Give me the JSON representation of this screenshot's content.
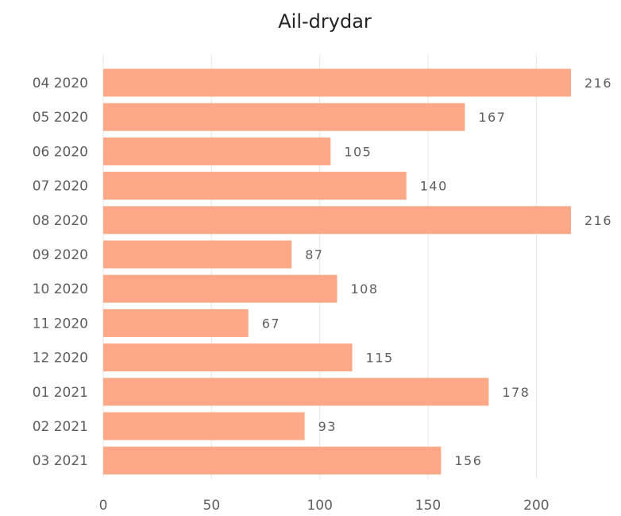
{
  "chart_data": {
    "type": "bar",
    "orientation": "horizontal",
    "title": "Ail-drydar",
    "categories": [
      "04 2020",
      "05 2020",
      "06 2020",
      "07 2020",
      "08 2020",
      "09 2020",
      "10 2020",
      "11 2020",
      "12 2020",
      "01 2021",
      "02 2021",
      "03 2021"
    ],
    "values": [
      216,
      167,
      105,
      140,
      216,
      87,
      108,
      67,
      115,
      178,
      93,
      156
    ],
    "xlim": [
      0,
      216
    ],
    "xticks": [
      0,
      50,
      100,
      150,
      200
    ],
    "grid": true,
    "bar_color": "#fda987",
    "data_labels": true
  }
}
